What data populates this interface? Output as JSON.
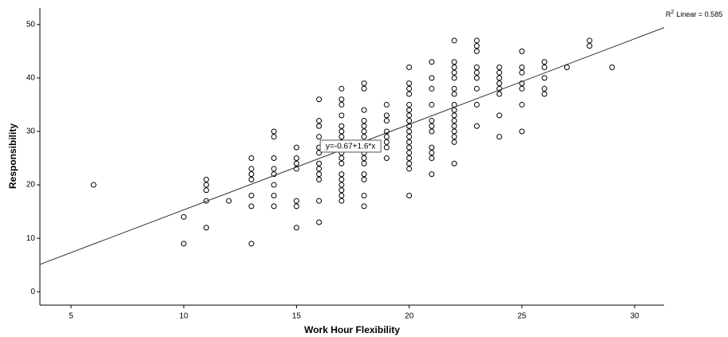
{
  "chart_data": {
    "type": "scatter",
    "x_label": "Work Hour Flexibility",
    "y_label": "Responsibility",
    "x": [
      6,
      10,
      10,
      11,
      11,
      11,
      11,
      11,
      12,
      13,
      13,
      13,
      13,
      13,
      13,
      13,
      14,
      14,
      14,
      14,
      14,
      14,
      14,
      14,
      15,
      15,
      15,
      15,
      15,
      15,
      15,
      16,
      16,
      16,
      16,
      16,
      16,
      16,
      16,
      16,
      16,
      16,
      16,
      17,
      17,
      17,
      17,
      17,
      17,
      17,
      17,
      17,
      17,
      17,
      17,
      17,
      17,
      17,
      17,
      17,
      17,
      18,
      18,
      18,
      18,
      18,
      18,
      18,
      18,
      18,
      18,
      18,
      18,
      18,
      18,
      18,
      19,
      19,
      19,
      19,
      19,
      19,
      19,
      19,
      20,
      20,
      20,
      20,
      20,
      20,
      20,
      20,
      20,
      20,
      20,
      20,
      20,
      20,
      20,
      20,
      20,
      20,
      21,
      21,
      21,
      21,
      21,
      21,
      21,
      21,
      21,
      21,
      21,
      22,
      22,
      22,
      22,
      22,
      22,
      22,
      22,
      22,
      22,
      22,
      22,
      22,
      22,
      22,
      22,
      23,
      23,
      23,
      23,
      23,
      23,
      23,
      23,
      23,
      24,
      24,
      24,
      24,
      24,
      24,
      24,
      24,
      25,
      25,
      25,
      25,
      25,
      25,
      25,
      26,
      26,
      26,
      26,
      26,
      27,
      28,
      28,
      29
    ],
    "values": [
      20,
      14,
      9,
      21,
      20,
      19,
      17,
      12,
      17,
      25,
      23,
      22,
      21,
      18,
      16,
      9,
      30,
      29,
      25,
      23,
      22,
      20,
      18,
      16,
      27,
      25,
      24,
      23,
      17,
      16,
      12,
      36,
      32,
      31,
      29,
      27,
      26,
      24,
      23,
      22,
      21,
      17,
      13,
      38,
      36,
      35,
      33,
      31,
      30,
      29,
      28,
      27,
      26,
      25,
      24,
      22,
      21,
      20,
      19,
      18,
      17,
      39,
      38,
      34,
      32,
      31,
      30,
      29,
      27,
      26,
      25,
      24,
      22,
      21,
      18,
      16,
      35,
      33,
      32,
      30,
      29,
      28,
      27,
      25,
      42,
      39,
      38,
      37,
      35,
      34,
      33,
      32,
      31,
      30,
      29,
      28,
      27,
      26,
      25,
      24,
      23,
      18,
      43,
      40,
      38,
      35,
      32,
      31,
      30,
      27,
      26,
      25,
      22,
      47,
      43,
      42,
      41,
      40,
      38,
      37,
      35,
      34,
      33,
      32,
      31,
      30,
      29,
      28,
      24,
      47,
      46,
      45,
      42,
      41,
      40,
      38,
      35,
      31,
      42,
      41,
      40,
      39,
      38,
      37,
      33,
      29,
      45,
      42,
      41,
      39,
      38,
      35,
      30,
      43,
      42,
      40,
      38,
      37,
      42,
      47,
      46,
      42
    ],
    "fit": {
      "intercept": -0.67,
      "slope": 1.6,
      "label": "y=-0.67+1.6*x"
    },
    "r2_label": {
      "base": "R",
      "sup": "2",
      "text": "Linear = 0.585"
    },
    "xlim": [
      3.62,
      31.31
    ],
    "ylim": [
      -2.5,
      53.1
    ],
    "xticks": [
      5,
      10,
      15,
      20,
      25,
      30
    ],
    "yticks": [
      0,
      10,
      20,
      30,
      40,
      50
    ],
    "color": "#000000",
    "grid": false
  }
}
